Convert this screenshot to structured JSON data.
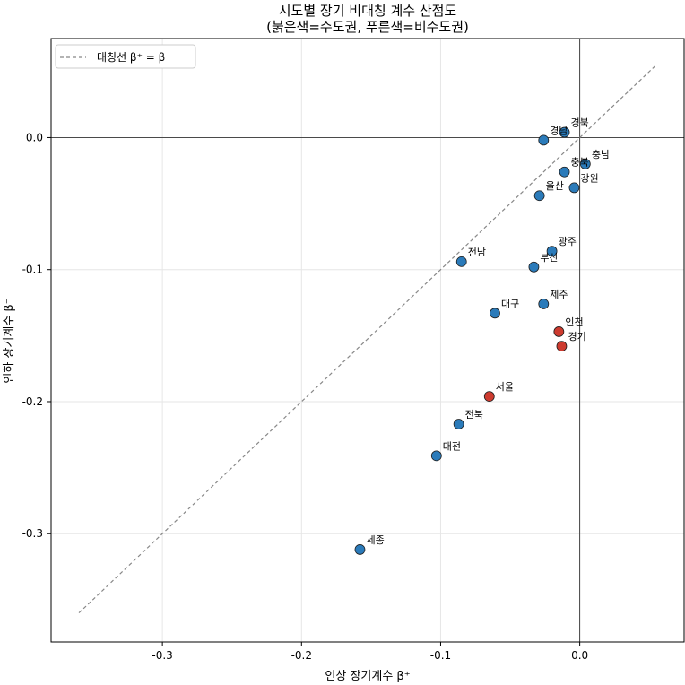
{
  "chart_data": {
    "type": "scatter",
    "title": "시도별 장기 비대칭 계수 산점도",
    "subtitle": "(붉은색=수도권, 푸른색=비수도권)",
    "xlabel": "인상 장기계수 β⁺",
    "ylabel": "인하 장기계수 β⁻",
    "xlim": [
      -0.38,
      0.075
    ],
    "ylim": [
      -0.382,
      0.075
    ],
    "xticks": [
      -0.3,
      -0.2,
      -0.1,
      0.0
    ],
    "xtick_labels": [
      "-0.3",
      "-0.2",
      "-0.1",
      "0.0"
    ],
    "yticks": [
      -0.3,
      -0.2,
      -0.1,
      0.0
    ],
    "ytick_labels": [
      "-0.3",
      "-0.2",
      "-0.1",
      "0.0"
    ],
    "grid": true,
    "reference_lines": {
      "x": 0,
      "y": 0
    },
    "symmetry_line": {
      "x": [
        -0.36,
        0.055
      ],
      "y": [
        -0.36,
        0.055
      ]
    },
    "legend": {
      "position": "top-left",
      "label": "대칭선 β⁺ = β⁻"
    },
    "colors": {
      "capital": "#cd3b2f",
      "non_capital": "#2b7bba",
      "symmetry": "#888888"
    },
    "points": [
      {
        "label": "경북",
        "x": -0.011,
        "y": 0.004,
        "group": "non_capital"
      },
      {
        "label": "경남",
        "x": -0.026,
        "y": -0.002,
        "group": "non_capital"
      },
      {
        "label": "충남",
        "x": 0.004,
        "y": -0.02,
        "group": "non_capital"
      },
      {
        "label": "충북",
        "x": -0.011,
        "y": -0.026,
        "group": "non_capital"
      },
      {
        "label": "강원",
        "x": -0.004,
        "y": -0.038,
        "group": "non_capital"
      },
      {
        "label": "울산",
        "x": -0.029,
        "y": -0.044,
        "group": "non_capital"
      },
      {
        "label": "광주",
        "x": -0.02,
        "y": -0.086,
        "group": "non_capital"
      },
      {
        "label": "부산",
        "x": -0.033,
        "y": -0.098,
        "group": "non_capital"
      },
      {
        "label": "전남",
        "x": -0.085,
        "y": -0.094,
        "group": "non_capital"
      },
      {
        "label": "제주",
        "x": -0.026,
        "y": -0.126,
        "group": "non_capital"
      },
      {
        "label": "대구",
        "x": -0.061,
        "y": -0.133,
        "group": "non_capital"
      },
      {
        "label": "인천",
        "x": -0.015,
        "y": -0.147,
        "group": "capital"
      },
      {
        "label": "경기",
        "x": -0.013,
        "y": -0.158,
        "group": "capital"
      },
      {
        "label": "서울",
        "x": -0.065,
        "y": -0.196,
        "group": "capital"
      },
      {
        "label": "전북",
        "x": -0.087,
        "y": -0.217,
        "group": "non_capital"
      },
      {
        "label": "대전",
        "x": -0.103,
        "y": -0.241,
        "group": "non_capital"
      },
      {
        "label": "세종",
        "x": -0.158,
        "y": -0.312,
        "group": "non_capital"
      }
    ]
  }
}
